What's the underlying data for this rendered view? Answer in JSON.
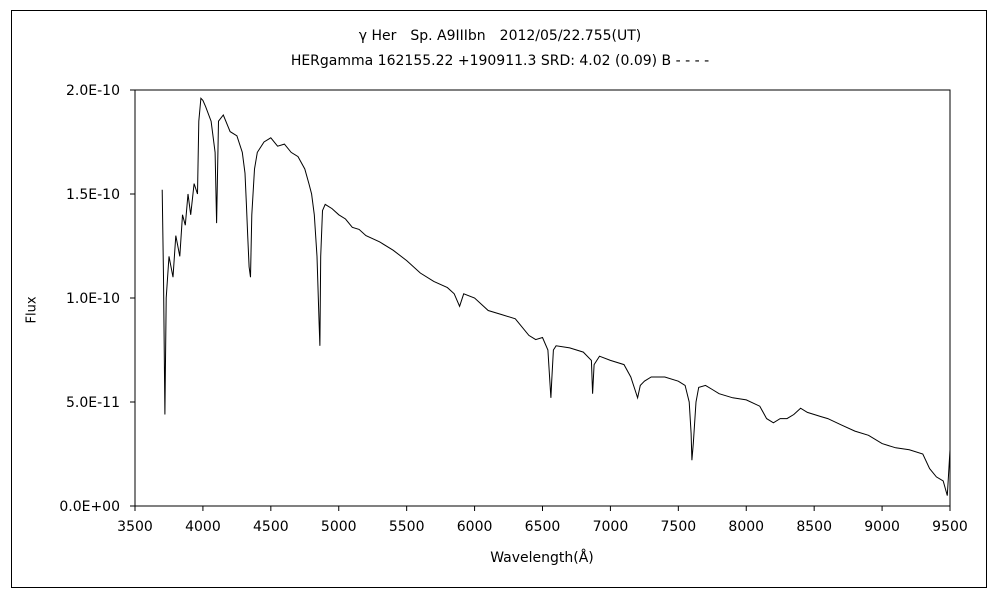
{
  "chart_data": {
    "type": "line",
    "title": "γ Her　Sp. A9IIIbn　2012/05/22.755(UT)",
    "subtitle": "HERgamma 162155.22 +190911.3 SRD: 4.02 (0.09) B - - - -",
    "xlabel": "Wavelength(Å)",
    "ylabel": "Flux",
    "xlim": [
      3500,
      9500
    ],
    "ylim": [
      0,
      2e-10
    ],
    "x_ticks": [
      3500,
      4000,
      4500,
      5000,
      5500,
      6000,
      6500,
      7000,
      7500,
      8000,
      8500,
      9000,
      9500
    ],
    "x_tick_labels": [
      "3500",
      "4000",
      "4500",
      "5000",
      "5500",
      "6000",
      "6500",
      "7000",
      "7500",
      "8000",
      "8500",
      "9000",
      "9500"
    ],
    "y_ticks": [
      0,
      5e-11,
      1e-10,
      1.5e-10,
      2e-10
    ],
    "y_tick_labels": [
      "0.0E+00",
      "5.0E-11",
      "1.0E-10",
      "1.5E-10",
      "2.0E-10"
    ],
    "grid": false,
    "line_color": "#000000",
    "series": [
      {
        "x": [
          3700,
          3710,
          3720,
          3730,
          3750,
          3780,
          3800,
          3830,
          3850,
          3870,
          3890,
          3910,
          3935,
          3960,
          3970,
          3985,
          4000,
          4020,
          4060,
          4090,
          4101,
          4115,
          4150,
          4200,
          4250,
          4290,
          4310,
          4320,
          4330,
          4340,
          4350,
          4360,
          4380,
          4400,
          4450,
          4500,
          4550,
          4600,
          4650,
          4700,
          4750,
          4780,
          4800,
          4820,
          4840,
          4855,
          4861,
          4867,
          4880,
          4900,
          4950,
          5000,
          5050,
          5100,
          5150,
          5200,
          5300,
          5400,
          5500,
          5600,
          5700,
          5800,
          5850,
          5890,
          5920,
          6000,
          6100,
          6200,
          6300,
          6400,
          6450,
          6500,
          6540,
          6556,
          6562,
          6568,
          6580,
          6600,
          6700,
          6800,
          6860,
          6869,
          6880,
          6920,
          7000,
          7100,
          7150,
          7180,
          7200,
          7220,
          7250,
          7300,
          7400,
          7500,
          7550,
          7580,
          7594,
          7600,
          7610,
          7630,
          7650,
          7700,
          7750,
          7800,
          7900,
          8000,
          8100,
          8150,
          8200,
          8250,
          8300,
          8350,
          8400,
          8450,
          8500,
          8550,
          8600,
          8700,
          8800,
          8900,
          9000,
          9100,
          9200,
          9300,
          9350,
          9400,
          9450,
          9480,
          9500
        ],
        "y": [
          1.52e-10,
          1.1e-10,
          4.4e-11,
          1e-10,
          1.2e-10,
          1.1e-10,
          1.3e-10,
          1.2e-10,
          1.4e-10,
          1.35e-10,
          1.5e-10,
          1.4e-10,
          1.55e-10,
          1.5e-10,
          1.85e-10,
          1.96e-10,
          1.95e-10,
          1.92e-10,
          1.85e-10,
          1.7e-10,
          1.36e-10,
          1.85e-10,
          1.88e-10,
          1.8e-10,
          1.78e-10,
          1.7e-10,
          1.6e-10,
          1.45e-10,
          1.3e-10,
          1.15e-10,
          1.1e-10,
          1.4e-10,
          1.62e-10,
          1.7e-10,
          1.75e-10,
          1.77e-10,
          1.73e-10,
          1.74e-10,
          1.7e-10,
          1.68e-10,
          1.62e-10,
          1.55e-10,
          1.5e-10,
          1.4e-10,
          1.2e-10,
          8.8e-11,
          7.7e-11,
          1.2e-10,
          1.42e-10,
          1.45e-10,
          1.43e-10,
          1.4e-10,
          1.38e-10,
          1.34e-10,
          1.33e-10,
          1.3e-10,
          1.27e-10,
          1.23e-10,
          1.18e-10,
          1.12e-10,
          1.08e-10,
          1.05e-10,
          1.02e-10,
          9.6e-11,
          1.02e-10,
          1e-10,
          9.4e-11,
          9.2e-11,
          9e-11,
          8.2e-11,
          8e-11,
          8.1e-11,
          7.5e-11,
          5.8e-11,
          5.2e-11,
          6e-11,
          7.5e-11,
          7.7e-11,
          7.6e-11,
          7.4e-11,
          7e-11,
          5.4e-11,
          6.8e-11,
          7.2e-11,
          7e-11,
          6.8e-11,
          6.2e-11,
          5.6e-11,
          5.2e-11,
          5.8e-11,
          6e-11,
          6.2e-11,
          6.2e-11,
          6e-11,
          5.8e-11,
          5e-11,
          3.5e-11,
          2.2e-11,
          3e-11,
          5e-11,
          5.7e-11,
          5.8e-11,
          5.6e-11,
          5.4e-11,
          5.2e-11,
          5.1e-11,
          4.8e-11,
          4.2e-11,
          4e-11,
          4.2e-11,
          4.2e-11,
          4.4e-11,
          4.7e-11,
          4.5e-11,
          4.4e-11,
          4.3e-11,
          4.2e-11,
          3.9e-11,
          3.6e-11,
          3.4e-11,
          3e-11,
          2.8e-11,
          2.7e-11,
          2.5e-11,
          1.8e-11,
          1.4e-11,
          1.2e-11,
          5e-12,
          2.7e-11
        ]
      }
    ]
  }
}
